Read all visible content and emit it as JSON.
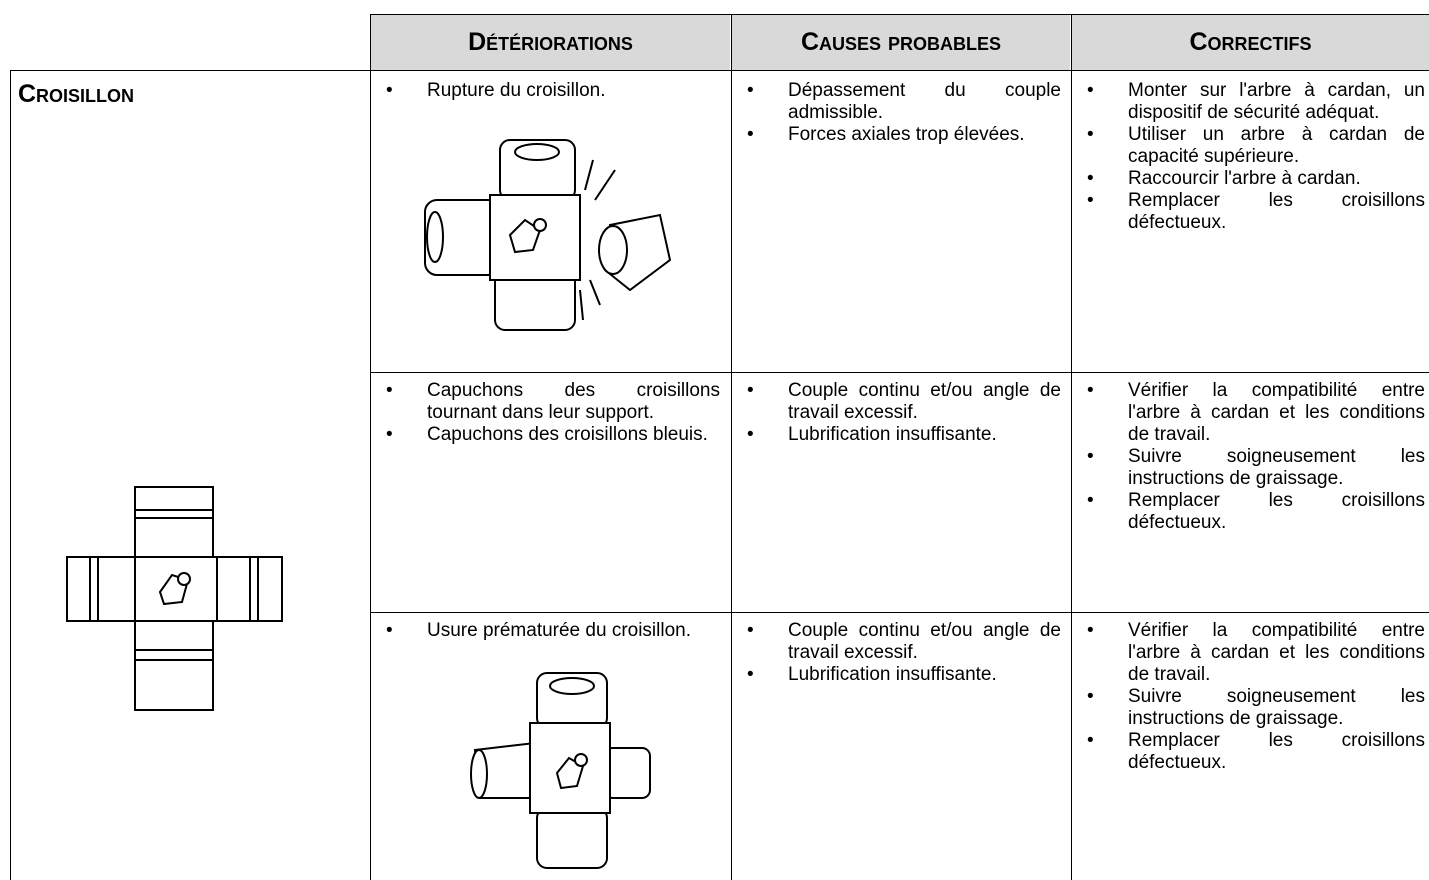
{
  "header": {
    "columns": [
      "Détériorations",
      "Causes probables",
      "Correctifs"
    ]
  },
  "table": {
    "label": "Croisillon",
    "rows": [
      {
        "deteriorations": [
          "Rupture du croisillon."
        ],
        "causes": [
          "Dépassement du couple admissible.",
          "Forces axiales trop élevées."
        ],
        "correctifs": [
          "Monter sur l'arbre à cardan, un dispositif de sécurité adéquat.",
          "Utiliser un arbre à cardan de capacité supérieure.",
          "Raccourcir l'arbre à cardan.",
          "Remplacer les croisillons défectueux."
        ]
      },
      {
        "deteriorations": [
          "Capuchons des croisillons tournant dans leur support.",
          "Capuchons des croisillons bleuis."
        ],
        "causes": [
          "Couple continu et/ou angle de travail excessif.",
          "Lubrification insuffisante."
        ],
        "correctifs": [
          "Vérifier la compatibilité entre l'arbre à cardan et les conditions de travail.",
          "Suivre soigneusement les instructions de graissage.",
          "Remplacer les croisillons défectueux."
        ]
      },
      {
        "deteriorations": [
          "Usure prématurée du croisillon."
        ],
        "causes": [
          "Couple continu et/ou angle de travail excessif.",
          "Lubrification insuffisante."
        ],
        "correctifs": [
          "Vérifier la compatibilité entre l'arbre à cardan et les conditions de travail.",
          "Suivre soigneusement les instructions de graissage.",
          "Remplacer les croisillons défectueux."
        ]
      }
    ]
  }
}
